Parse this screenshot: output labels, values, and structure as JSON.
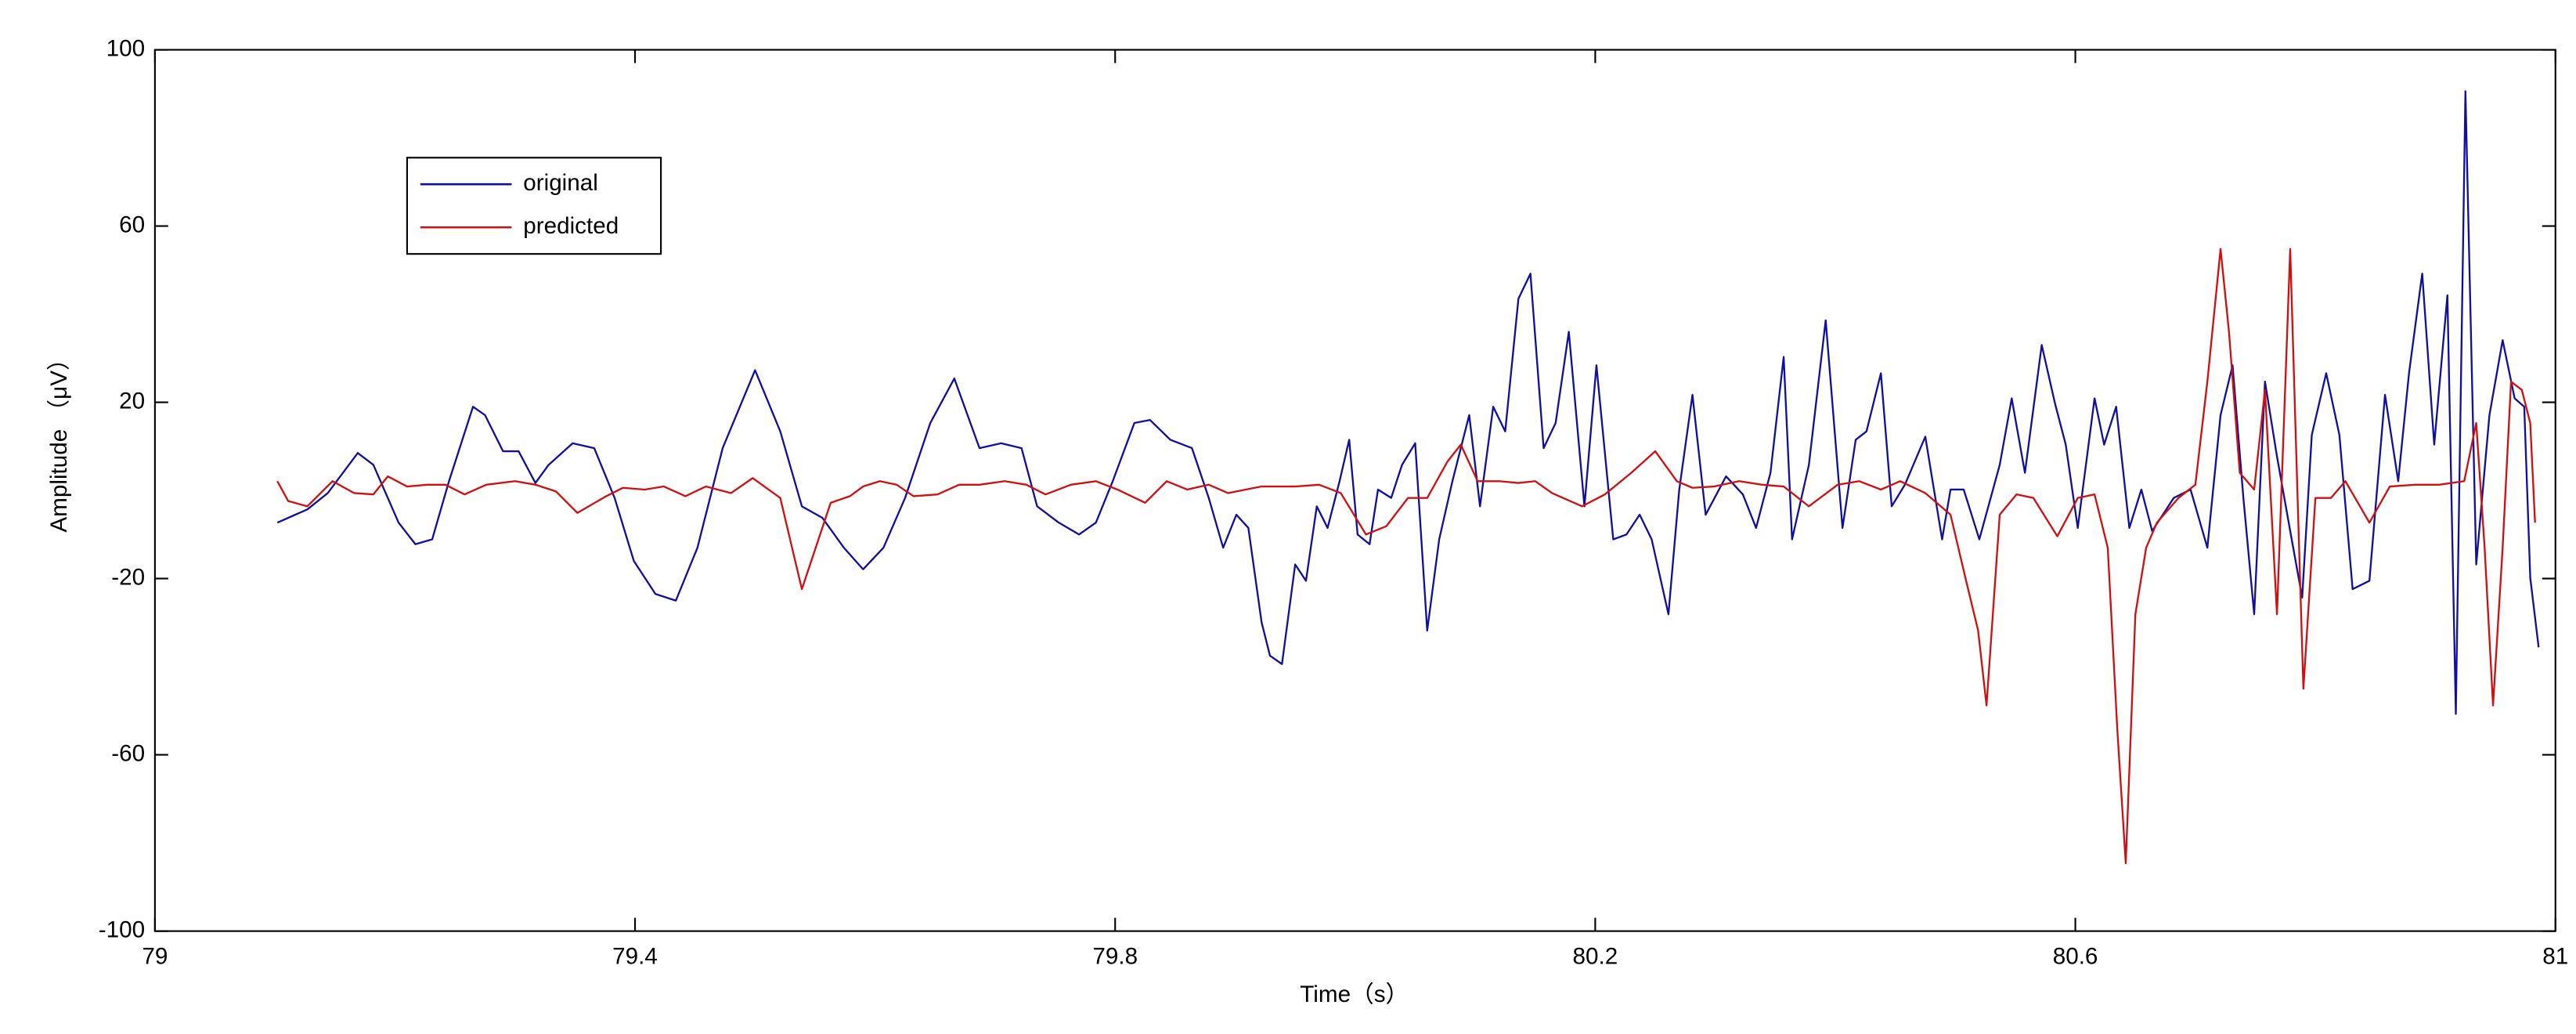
{
  "chart_data": {
    "type": "line",
    "x_label": "Time（s）",
    "y_label": "Amplitude （μV）",
    "xlim": [
      79,
      81
    ],
    "ylim": [
      -100,
      100
    ],
    "xticks": [
      79,
      79.4,
      79.8,
      80.2,
      80.6,
      81
    ],
    "yticks": [
      -100,
      -60,
      -20,
      20,
      60,
      100
    ],
    "grid": false,
    "legend": "upper left",
    "series": [
      {
        "name": "original",
        "color": "#1010a0",
        "x": [
          79.102,
          79.127,
          79.144,
          79.169,
          79.182,
          79.203,
          79.217,
          79.231,
          79.245,
          79.265,
          79.275,
          79.29,
          79.303,
          79.317,
          79.328,
          79.348,
          79.366,
          79.383,
          79.399,
          79.417,
          79.434,
          79.452,
          79.473,
          79.5,
          79.521,
          79.539,
          79.556,
          79.574,
          79.59,
          79.607,
          79.625,
          79.646,
          79.666,
          79.687,
          79.705,
          79.722,
          79.735,
          79.753,
          79.77,
          79.784,
          79.798,
          79.816,
          79.829,
          79.846,
          79.864,
          79.878,
          79.89,
          79.901,
          79.911,
          79.922,
          79.929,
          79.939,
          79.95,
          79.959,
          79.968,
          79.977,
          79.987,
          79.995,
          80.002,
          80.012,
          80.019,
          80.03,
          80.039,
          80.05,
          80.06,
          80.07,
          80.081,
          80.095,
          80.104,
          80.115,
          80.125,
          80.136,
          80.146,
          80.157,
          80.167,
          80.178,
          80.191,
          80.201,
          80.215,
          80.226,
          80.237,
          80.247,
          80.261,
          80.27,
          80.281,
          80.292,
          80.309,
          80.323,
          80.334,
          80.346,
          80.357,
          80.364,
          80.378,
          80.392,
          80.406,
          80.417,
          80.426,
          80.438,
          80.447,
          80.458,
          80.475,
          80.489,
          80.496,
          80.507,
          80.52,
          80.537,
          80.547,
          80.558,
          80.572,
          80.583,
          80.592,
          80.602,
          80.616,
          80.624,
          80.634,
          80.645,
          80.655,
          80.664,
          80.682,
          80.696,
          80.71,
          80.721,
          80.731,
          80.74,
          80.749,
          80.758,
          80.768,
          80.779,
          80.789,
          80.797,
          80.809,
          80.82,
          80.831,
          80.845,
          80.858,
          80.869,
          80.878,
          80.889,
          80.899,
          80.91,
          80.917,
          80.925,
          80.934,
          80.945,
          80.956,
          80.966,
          80.974,
          80.979,
          80.986
        ],
        "values": [
          -7.3,
          -4.3,
          -0.6,
          8.5,
          5.8,
          -7.3,
          -12.2,
          -11.1,
          2.1,
          19.0,
          17.1,
          8.9,
          8.9,
          1.7,
          5.8,
          10.7,
          9.6,
          -1.7,
          -16.0,
          -23.5,
          -25.0,
          -13.0,
          9.6,
          27.3,
          13.4,
          -3.6,
          -6.2,
          -13.0,
          -17.9,
          -13.0,
          -1.7,
          15.3,
          25.4,
          9.6,
          10.7,
          9.6,
          -3.6,
          -7.3,
          -10.0,
          -7.3,
          2.1,
          15.3,
          16.0,
          11.5,
          9.6,
          -1.7,
          -13.0,
          -5.5,
          -8.5,
          -29.9,
          -37.5,
          -39.4,
          -16.8,
          -20.5,
          -3.6,
          -8.5,
          2.1,
          11.5,
          -10.0,
          -12.2,
          0.2,
          -1.7,
          5.8,
          10.7,
          -31.8,
          -11.1,
          2.1,
          17.1,
          -3.6,
          19.0,
          13.4,
          43.5,
          49.2,
          9.6,
          15.3,
          36.0,
          -3.6,
          28.4,
          -11.1,
          -10.0,
          -5.5,
          -11.1,
          -28.1,
          0.2,
          21.7,
          -5.5,
          3.2,
          -0.9,
          -8.5,
          4.0,
          30.3,
          -11.1,
          5.8,
          38.6,
          -8.5,
          11.5,
          13.4,
          26.6,
          -3.6,
          1.3,
          12.2,
          -11.1,
          0.2,
          0.2,
          -11.1,
          5.8,
          20.9,
          4.0,
          33.0,
          19.8,
          10.4,
          -8.5,
          20.9,
          10.4,
          19.0,
          -8.5,
          0.2,
          -9.2,
          -1.7,
          0.2,
          -13.0,
          17.1,
          28.4,
          -1.7,
          -28.1,
          24.7,
          7.7,
          -9.2,
          -24.3,
          12.6,
          26.6,
          12.6,
          -22.4,
          -20.5,
          21.7,
          2.1,
          26.6,
          49.2,
          10.4,
          44.3,
          -50.7,
          90.6,
          -16.8,
          17.1,
          34.1,
          20.9,
          19.0,
          -19.8,
          -35.6
        ]
      },
      {
        "name": "predicted",
        "color": "#d01010",
        "x": [
          79.102,
          79.111,
          79.127,
          79.148,
          79.166,
          79.182,
          79.194,
          79.21,
          79.227,
          79.242,
          79.258,
          79.276,
          79.3,
          79.317,
          79.334,
          79.352,
          79.376,
          79.39,
          79.408,
          79.424,
          79.442,
          79.459,
          79.48,
          79.498,
          79.521,
          79.539,
          79.563,
          79.579,
          79.59,
          79.604,
          79.618,
          79.632,
          79.652,
          79.67,
          79.687,
          79.708,
          79.726,
          79.742,
          79.763,
          79.784,
          79.802,
          79.825,
          79.843,
          79.86,
          79.878,
          79.894,
          79.922,
          79.95,
          79.97,
          79.988,
          80.009,
          80.026,
          80.044,
          80.06,
          80.077,
          80.088,
          80.102,
          80.12,
          80.136,
          80.15,
          80.164,
          80.189,
          80.208,
          80.23,
          80.25,
          80.268,
          80.281,
          80.299,
          80.32,
          80.339,
          80.357,
          80.378,
          80.402,
          80.42,
          80.438,
          80.454,
          80.475,
          80.496,
          80.509,
          80.519,
          80.526,
          80.537,
          80.551,
          80.565,
          80.585,
          80.602,
          80.616,
          80.627,
          80.635,
          80.642,
          80.65,
          80.659,
          80.668,
          80.686,
          80.7,
          80.71,
          80.721,
          80.728,
          80.737,
          80.749,
          80.758,
          80.768,
          80.779,
          80.786,
          80.79,
          80.8,
          80.813,
          80.825,
          80.845,
          80.862,
          80.883,
          80.903,
          80.924,
          80.934,
          80.941,
          80.948,
          80.956,
          80.963,
          80.972,
          80.979,
          80.983
        ],
        "values": [
          2.1,
          -2.4,
          -3.6,
          2.1,
          -0.6,
          -0.9,
          3.2,
          0.9,
          1.3,
          1.3,
          -0.9,
          1.3,
          2.1,
          1.3,
          -0.2,
          -5.1,
          -1.3,
          0.6,
          0.2,
          0.9,
          -1.3,
          0.9,
          -0.6,
          2.8,
          -1.7,
          -22.4,
          -2.8,
          -1.3,
          0.9,
          2.1,
          1.3,
          -1.3,
          -0.9,
          1.3,
          1.3,
          2.1,
          1.3,
          -0.9,
          1.3,
          2.1,
          0.2,
          -2.8,
          2.1,
          0.2,
          1.3,
          -0.6,
          0.9,
          0.9,
          1.3,
          -0.6,
          -10.0,
          -8.1,
          -1.7,
          -1.7,
          6.6,
          10.4,
          2.1,
          2.1,
          1.7,
          2.1,
          -0.6,
          -3.6,
          -0.9,
          4.0,
          8.9,
          2.1,
          0.6,
          0.9,
          2.1,
          1.3,
          0.9,
          -3.6,
          1.3,
          2.1,
          0.2,
          2.1,
          -0.6,
          -5.5,
          -20.5,
          -31.8,
          -48.8,
          -5.5,
          -0.9,
          -1.7,
          -10.4,
          -1.7,
          -0.9,
          -13.0,
          -54.4,
          -84.6,
          -28.1,
          -13.0,
          -7.3,
          -1.7,
          1.3,
          24.7,
          54.8,
          36.0,
          4.0,
          0.2,
          22.8,
          -28.1,
          54.8,
          -9.2,
          -45.0,
          -1.7,
          -1.7,
          2.1,
          -7.3,
          0.9,
          1.3,
          1.3,
          2.1,
          15.3,
          -13.0,
          -48.8,
          -13.0,
          24.7,
          22.8,
          15.3,
          -7.3
        ]
      }
    ]
  }
}
